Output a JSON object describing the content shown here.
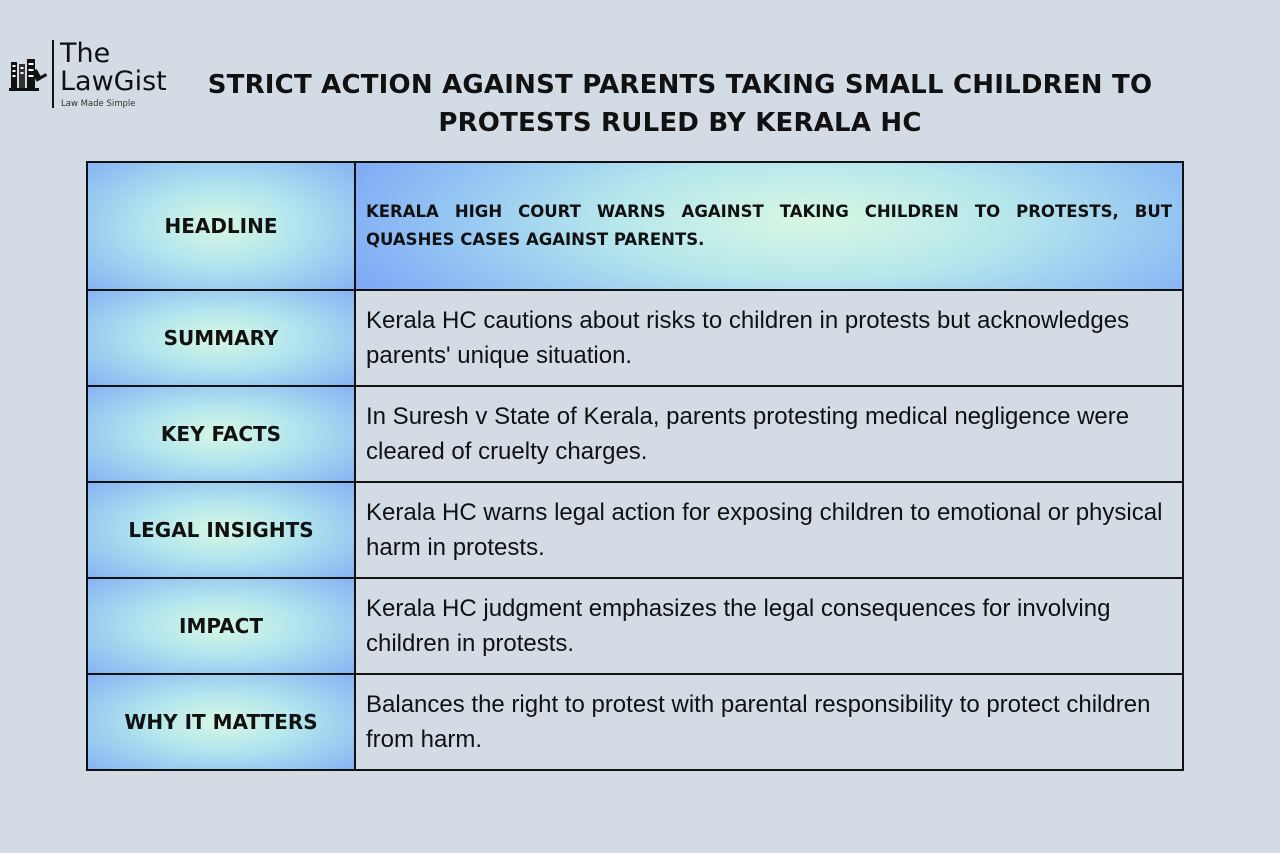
{
  "logo": {
    "line1": "The",
    "line2": "LawGist",
    "tagline": "Law Made Simple",
    "icon": "bookshelf-gavel-icon"
  },
  "title": "STRICT ACTION AGAINST PARENTS TAKING SMALL CHILDREN TO PROTESTS RULED BY KERALA HC",
  "rows": [
    {
      "label": "HEADLINE",
      "text": "KERALA HIGH COURT WARNS AGAINST TAKING CHILDREN TO PROTESTS, BUT QUASHES CASES AGAINST PARENTS."
    },
    {
      "label": "SUMMARY",
      "text": "Kerala HC cautions about risks to children in protests but acknowledges parents' unique situation."
    },
    {
      "label": "KEY FACTS",
      "text": "In Suresh v State of Kerala, parents protesting medical negligence were cleared of cruelty charges."
    },
    {
      "label": "LEGAL INSIGHTS",
      "text": "Kerala HC warns legal action for exposing children to emotional or physical harm in protests."
    },
    {
      "label": "IMPACT",
      "text": "Kerala HC judgment emphasizes the legal consequences for involving children in protests."
    },
    {
      "label": "WHY IT MATTERS",
      "text": "Balances the right to protest with parental responsibility to protect children from harm."
    }
  ],
  "colors": {
    "background": "#d3dbe5",
    "text": "#111111",
    "gradient_center": "#d8f7e2",
    "gradient_edge": "#7aa6f5"
  }
}
